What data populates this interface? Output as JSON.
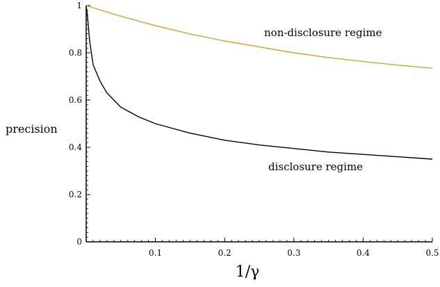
{
  "chart_data": {
    "type": "line",
    "title": "",
    "xlabel": "1/γ",
    "ylabel": "precision",
    "xlim": [
      0,
      0.5
    ],
    "ylim": [
      0,
      1
    ],
    "x_ticks": [
      "0.1",
      "0.2",
      "0.3",
      "0.4",
      "0.5"
    ],
    "y_ticks": [
      "0",
      "0.2",
      "0.4",
      "0.6",
      "0.8",
      "1"
    ],
    "grid": false,
    "legend": "none",
    "series": [
      {
        "label": "non-disclosure regime",
        "color": "#d4a03a",
        "points": [
          [
            0,
            1.0
          ],
          [
            0.05,
            0.955
          ],
          [
            0.1,
            0.915
          ],
          [
            0.15,
            0.88
          ],
          [
            0.2,
            0.85
          ],
          [
            0.25,
            0.825
          ],
          [
            0.3,
            0.8
          ],
          [
            0.35,
            0.78
          ],
          [
            0.4,
            0.763
          ],
          [
            0.45,
            0.748
          ],
          [
            0.5,
            0.735
          ]
        ]
      },
      {
        "label": "disclosure regime",
        "color": "#000000",
        "points": [
          [
            0,
            1.0
          ],
          [
            0.002,
            0.95
          ],
          [
            0.005,
            0.85
          ],
          [
            0.01,
            0.75
          ],
          [
            0.02,
            0.68
          ],
          [
            0.03,
            0.63
          ],
          [
            0.05,
            0.57
          ],
          [
            0.075,
            0.53
          ],
          [
            0.1,
            0.5
          ],
          [
            0.15,
            0.46
          ],
          [
            0.2,
            0.43
          ],
          [
            0.25,
            0.41
          ],
          [
            0.3,
            0.395
          ],
          [
            0.35,
            0.38
          ],
          [
            0.4,
            0.37
          ],
          [
            0.45,
            0.36
          ],
          [
            0.5,
            0.35
          ]
        ]
      }
    ]
  }
}
